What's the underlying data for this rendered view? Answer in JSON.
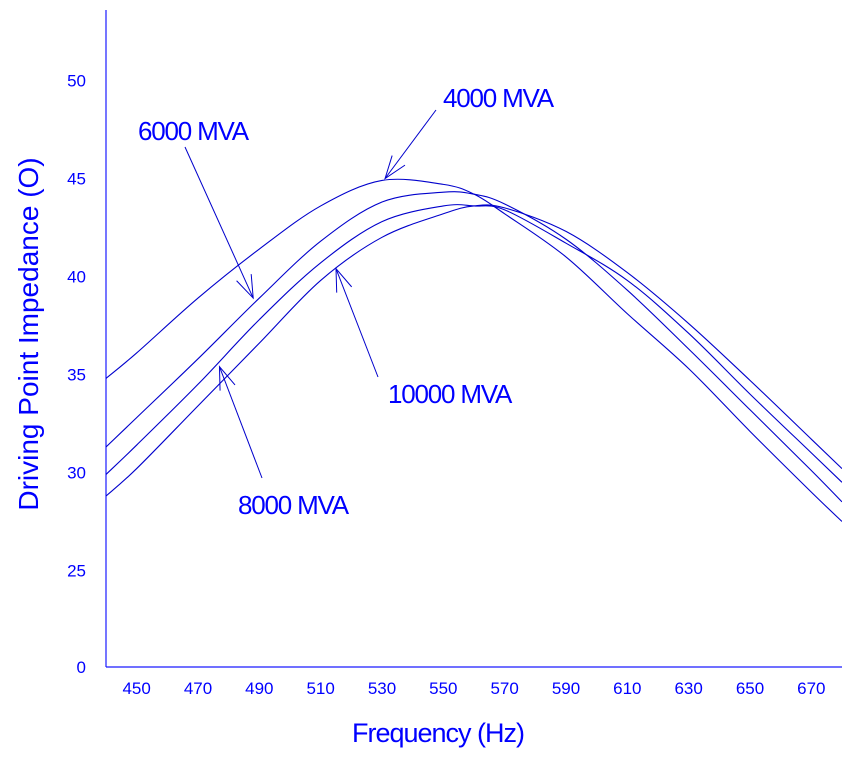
{
  "chart_data": {
    "type": "line",
    "title": "",
    "xlabel": "Frequency (Hz)",
    "ylabel": "Driving Point Impedance (O)",
    "xlim": [
      440,
      680
    ],
    "x_ticks": [
      450,
      470,
      490,
      510,
      530,
      550,
      570,
      590,
      610,
      630,
      650,
      670
    ],
    "y_tick_labels": [
      "0",
      "25",
      "30",
      "35",
      "40",
      "45",
      "50"
    ],
    "y_axis_note": "y axis is broken: bottom tick labelled 0, then 25 to 50 in steps of 5",
    "grid": false,
    "legend": "none (curves labelled with arrow annotations)",
    "colors": {
      "curve": "#0000cc",
      "text": "#0000ff",
      "axis": "#1a1aff"
    },
    "x": [
      440,
      450,
      470,
      490,
      510,
      530,
      550,
      560,
      570,
      590,
      610,
      630,
      650,
      670,
      680
    ],
    "series": [
      {
        "name": "4000 MVA",
        "values": [
          34.8,
          36.1,
          38.9,
          41.4,
          43.6,
          44.9,
          44.7,
          44.2,
          43.2,
          41.0,
          38.1,
          35.3,
          32.1,
          29.0,
          27.5
        ]
      },
      {
        "name": "6000 MVA",
        "values": [
          31.3,
          32.8,
          35.8,
          38.9,
          41.8,
          43.8,
          44.3,
          44.2,
          43.7,
          41.9,
          39.3,
          36.3,
          33.2,
          30.1,
          28.5
        ]
      },
      {
        "name": "8000 MVA",
        "values": [
          29.9,
          31.4,
          34.5,
          37.8,
          40.7,
          42.8,
          43.6,
          43.6,
          43.4,
          41.7,
          39.8,
          37.1,
          34.0,
          31.0,
          29.5
        ]
      },
      {
        "name": "10000 MVA",
        "values": [
          28.8,
          30.2,
          33.4,
          36.6,
          39.8,
          42.0,
          43.2,
          43.6,
          43.5,
          42.3,
          40.2,
          37.6,
          34.7,
          31.7,
          30.2
        ]
      }
    ],
    "annotations": [
      {
        "text": "4000 MVA",
        "x": 531,
        "y": 45.0
      },
      {
        "text": "6000 MVA",
        "x": 488,
        "y": 38.9
      },
      {
        "text": "8000 MVA",
        "x": 477,
        "y": 35.4
      },
      {
        "text": "10000 MVA",
        "x": 515,
        "y": 40.4
      }
    ]
  }
}
